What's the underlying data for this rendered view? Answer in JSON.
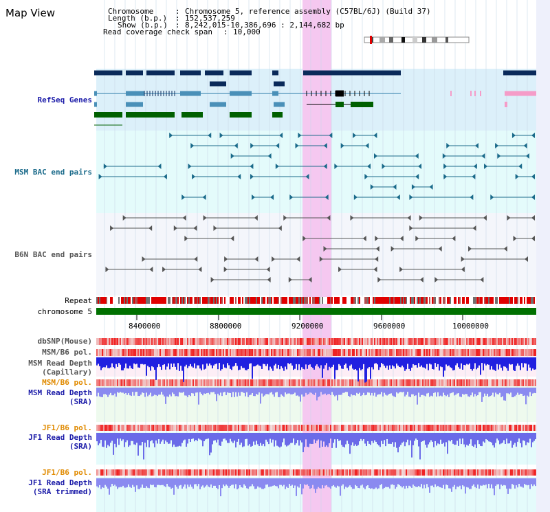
{
  "header": {
    "title": "Map View",
    "chromosome_key": "Chromosome",
    "chromosome_value": "Chromosome 5, reference assembly (C57BL/6J) (Build 37)",
    "length_key": "Length (b.p.)",
    "length_value": "152,537,259",
    "show_key": "Show (b.p.)",
    "show_value": "8,242,015-10,386,696 : 2,144,682 bp",
    "coverage_key": "Read coverage check span",
    "coverage_value": "10,000"
  },
  "tracks": {
    "refseq": "RefSeq Genes",
    "msm_bac": "MSM BAC end pairs",
    "b6n_bac": "B6N BAC end pairs",
    "repeat": "Repeat",
    "chromosome": "chromosome 5",
    "dbsnp": "dbSNP(Mouse)",
    "msm_b6_pol_1": "MSM/B6 pol.",
    "msm_depth_cap_1": "MSM Read Depth",
    "msm_depth_cap_2": "(Capillary)",
    "msm_b6_pol_2": "MSM/B6 pol.",
    "msm_depth_sra_1": "MSM Read Depth",
    "msm_depth_sra_2": "(SRA)",
    "jf1_b6_pol_1": "JF1/B6 pol.",
    "jf1_depth_sra_1": "JF1 Read Depth",
    "jf1_depth_sra_2": "(SRA)",
    "jf1_b6_pol_2": "JF1/B6 pol.",
    "jf1_depth_trim_1": "JF1 Read Depth",
    "jf1_depth_trim_2": "(SRA trimmed)"
  },
  "axis": {
    "ticks": [
      "8400000",
      "8800000",
      "9200000",
      "9600000",
      "10000000"
    ]
  },
  "colors": {
    "refseq_label": "#1a1aa8",
    "msm_label": "#1a6a8a",
    "b6n_label": "#555555",
    "orange_label": "#e08a00",
    "blue_label": "#1a1aa8",
    "highlight": "#f5c8f0",
    "chromosome": "#007000"
  }
}
